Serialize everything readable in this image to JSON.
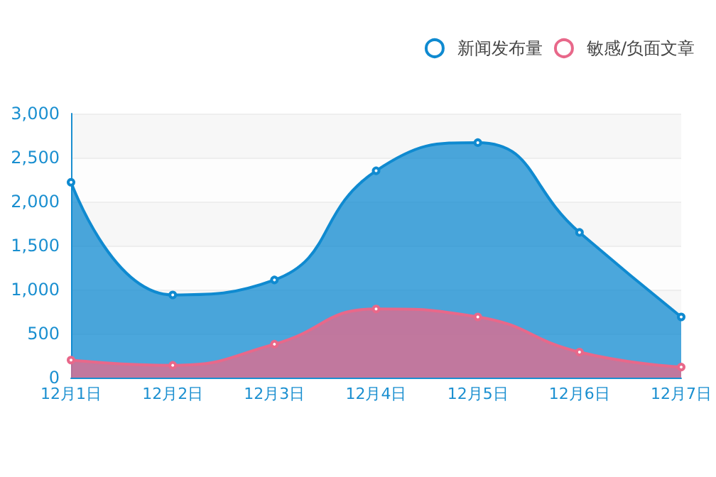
{
  "chart_data": {
    "type": "area",
    "categories": [
      "12月1日",
      "12月2日",
      "12月3日",
      "12月4日",
      "12月5日",
      "12月6日",
      "12月7日"
    ],
    "series": [
      {
        "name": "新闻发布量",
        "color": "#0f8ad0",
        "values": [
          2220,
          940,
          1110,
          2350,
          2670,
          1650,
          690
        ]
      },
      {
        "name": "敏感/负面文章",
        "color": "#e8688a",
        "values": [
          200,
          140,
          380,
          780,
          690,
          290,
          120
        ]
      }
    ],
    "ylim": [
      0,
      3000
    ],
    "yticks": [
      {
        "value": 0,
        "label": "0"
      },
      {
        "value": 500,
        "label": "500"
      },
      {
        "value": 1000,
        "label": "1,000"
      },
      {
        "value": 1500,
        "label": "1,500"
      },
      {
        "value": 2000,
        "label": "2,000"
      },
      {
        "value": 2500,
        "label": "2,500"
      },
      {
        "value": 3000,
        "label": "3,000"
      }
    ],
    "grid": "y",
    "legend": "top right",
    "marker": "circle"
  }
}
